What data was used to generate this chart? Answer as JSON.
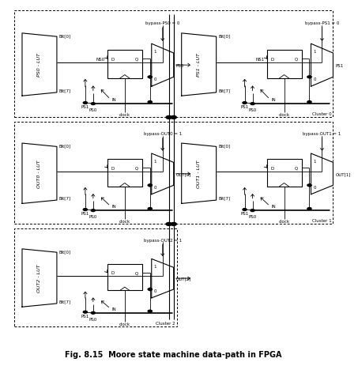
{
  "fig_caption": "Fig. 8.15  Moore state machine data-path in FPGA",
  "caption_fontsize": 7.0,
  "bg_color": "#ffffff",
  "cells": {
    "c0_left": {
      "lut": "PS0 - LUT",
      "ff": "NS0",
      "bypass": "bypass-PS0 = 0",
      "out": "PS0",
      "sel": "0"
    },
    "c0_right": {
      "lut": "PS1 - LUT",
      "ff": "NS1",
      "bypass": "bypass-PS1 = 0",
      "out": "PS1",
      "sel": "0"
    },
    "c1_left": {
      "lut": "OUT0 - LUT",
      "ff": "",
      "bypass": "bypass-OUT0 = 1",
      "out": "OUT[0]",
      "sel": "1"
    },
    "c1_right": {
      "lut": "OUT1 - LUT",
      "ff": "",
      "bypass": "bypass-OUT1 = 1",
      "out": "OUT[1]",
      "sel": "1"
    },
    "c2_left": {
      "lut": "OUT2 - LUT",
      "ff": "",
      "bypass": "bypass-OUT2 = 1",
      "out": "OUT[2]",
      "sel": "1"
    }
  },
  "bit_top": "Bit[0]",
  "bit_bot": "Bit[7]",
  "in_label": "IN",
  "ps0_label": "PS0",
  "ps1_label": "PS1",
  "clock_label": "clock",
  "cluster_names": [
    "Cluster 0",
    "Cluster 1",
    "Cluster 2"
  ]
}
